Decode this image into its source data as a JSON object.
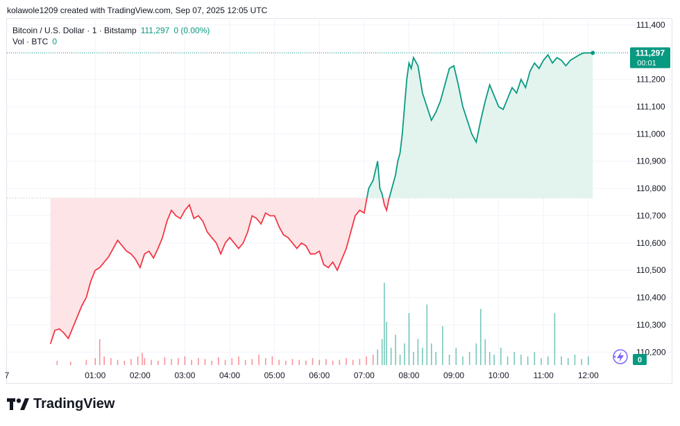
{
  "header": {
    "text": "kolawole1209 created with TradingView.com, Sep 07, 2025 12:05 UTC"
  },
  "legend": {
    "symbol": "Bitcoin / U.S. Dollar · 1 · Bitstamp",
    "last": "111,297",
    "change": "0 (0.00%)",
    "vol_label": "Vol · BTC",
    "vol_value": "0"
  },
  "price_badge": {
    "price": "111,297",
    "countdown": "00:01"
  },
  "volume_badge": "0",
  "brand": {
    "name": "TradingView"
  },
  "colors": {
    "up": "#089981",
    "down": "#f23645",
    "up_fill": "#e3f4ef",
    "down_fill": "#fde5e7",
    "grid": "#f0f3fa",
    "axis_text": "#131722"
  },
  "chart_data": {
    "type": "area",
    "title": "Bitcoin / U.S. Dollar · 1 · Bitstamp",
    "baseline": 110765,
    "ylim": [
      110150,
      111420
    ],
    "y_ticks": [
      110200,
      110300,
      110400,
      110500,
      110600,
      110700,
      110800,
      110900,
      111000,
      111100,
      111200,
      111300,
      111400
    ],
    "y_tick_labels": [
      "110,200",
      "110,300",
      "110,400",
      "110,500",
      "110,600",
      "110,700",
      "110,800",
      "110,900",
      "111,000",
      "111,100",
      "111,200",
      "111,300",
      "111,400"
    ],
    "x_range": [
      -0.97,
      12.73
    ],
    "x_ticks": [
      1,
      2,
      3,
      4,
      5,
      6,
      7,
      8,
      9,
      10,
      11,
      12
    ],
    "x_tick_labels": [
      "01:00",
      "02:00",
      "03:00",
      "04:00",
      "05:00",
      "06:00",
      "07:00",
      "08:00",
      "09:00",
      "10:00",
      "11:00",
      "12:00"
    ],
    "x_edge_label": "7",
    "last_price": 111297,
    "series": [
      {
        "x": [
          0.0,
          0.1,
          0.2,
          0.3,
          0.4,
          0.5,
          0.6,
          0.7,
          0.8,
          0.9,
          1.0,
          1.1,
          1.2,
          1.3,
          1.4,
          1.5,
          1.6,
          1.7,
          1.8,
          1.9,
          2.0,
          2.1,
          2.2,
          2.3,
          2.4,
          2.5,
          2.6,
          2.7,
          2.8,
          2.9,
          3.0,
          3.1,
          3.2,
          3.3,
          3.4,
          3.5,
          3.6,
          3.7,
          3.8,
          3.9,
          4.0,
          4.1,
          4.2,
          4.3,
          4.4,
          4.5,
          4.6,
          4.7,
          4.8,
          4.9,
          5.0,
          5.1,
          5.2,
          5.3,
          5.4,
          5.5,
          5.6,
          5.7,
          5.8,
          5.9,
          6.0,
          6.1,
          6.2,
          6.3,
          6.4,
          6.5,
          6.6,
          6.7,
          6.8,
          6.9,
          7.0,
          7.1,
          7.2,
          7.3,
          7.35,
          7.4,
          7.45,
          7.5,
          7.55,
          7.6,
          7.65,
          7.7,
          7.75,
          7.8,
          7.85,
          7.9,
          7.95,
          8.0,
          8.05,
          8.1,
          8.2,
          8.3,
          8.4,
          8.5,
          8.6,
          8.7,
          8.8,
          8.9,
          9.0,
          9.1,
          9.2,
          9.3,
          9.4,
          9.5,
          9.6,
          9.7,
          9.8,
          9.9,
          10.0,
          10.1,
          10.2,
          10.3,
          10.4,
          10.5,
          10.6,
          10.7,
          10.8,
          10.9,
          11.0,
          11.1,
          11.2,
          11.3,
          11.4,
          11.5,
          11.6,
          11.7,
          11.8,
          11.9,
          12.0,
          12.05,
          12.1
        ],
        "y": [
          110230,
          110280,
          110285,
          110270,
          110250,
          110290,
          110330,
          110370,
          110400,
          110460,
          110500,
          110510,
          110530,
          110550,
          110580,
          110610,
          110590,
          110570,
          110560,
          110540,
          110510,
          110560,
          110570,
          110545,
          110580,
          110620,
          110680,
          110720,
          110700,
          110690,
          110720,
          110740,
          110690,
          110700,
          110680,
          110640,
          110620,
          110600,
          110560,
          110600,
          110620,
          110600,
          110580,
          110600,
          110640,
          110700,
          110690,
          110670,
          110710,
          110700,
          110700,
          110660,
          110630,
          110620,
          110600,
          110580,
          110600,
          110590,
          110560,
          110560,
          110570,
          110520,
          110510,
          110530,
          110500,
          110540,
          110580,
          110640,
          110700,
          110720,
          110710,
          110800,
          110830,
          110900,
          110800,
          110780,
          110740,
          110720,
          110760,
          110790,
          110820,
          110850,
          110900,
          110930,
          111000,
          111100,
          111200,
          111260,
          111240,
          111280,
          111250,
          111150,
          111100,
          111050,
          111080,
          111120,
          111180,
          111240,
          111250,
          111180,
          111100,
          111050,
          111000,
          110970,
          111050,
          111120,
          111180,
          111140,
          111100,
          111090,
          111130,
          111170,
          111150,
          111200,
          111170,
          111230,
          111260,
          111240,
          111270,
          111290,
          111260,
          111280,
          111270,
          111250,
          111270,
          111280,
          111290,
          111297,
          111297,
          111297,
          111297
        ]
      }
    ],
    "volume": {
      "label": "Vol · BTC",
      "x": [
        0.15,
        0.45,
        0.8,
        1.0,
        1.1,
        1.2,
        1.35,
        1.5,
        1.65,
        1.8,
        1.95,
        2.05,
        2.1,
        2.25,
        2.4,
        2.55,
        2.7,
        2.85,
        3.0,
        3.15,
        3.3,
        3.45,
        3.6,
        3.75,
        3.9,
        4.05,
        4.2,
        4.35,
        4.5,
        4.65,
        4.8,
        4.95,
        5.1,
        5.25,
        5.4,
        5.55,
        5.7,
        5.85,
        6.0,
        6.15,
        6.3,
        6.45,
        6.6,
        6.75,
        6.9,
        7.05,
        7.2,
        7.3,
        7.4,
        7.45,
        7.5,
        7.6,
        7.7,
        7.8,
        7.9,
        8.0,
        8.1,
        8.2,
        8.3,
        8.4,
        8.5,
        8.6,
        8.75,
        8.9,
        9.05,
        9.2,
        9.35,
        9.5,
        9.6,
        9.7,
        9.8,
        9.9,
        10.05,
        10.2,
        10.35,
        10.5,
        10.65,
        10.8,
        10.95,
        11.1,
        11.25,
        11.4,
        11.55,
        11.7,
        11.85,
        12.0
      ],
      "values": [
        0.05,
        0.04,
        0.06,
        0.08,
        0.3,
        0.1,
        0.08,
        0.06,
        0.05,
        0.07,
        0.1,
        0.14,
        0.08,
        0.06,
        0.05,
        0.09,
        0.07,
        0.08,
        0.1,
        0.06,
        0.08,
        0.07,
        0.05,
        0.09,
        0.06,
        0.08,
        0.1,
        0.06,
        0.07,
        0.12,
        0.08,
        0.1,
        0.06,
        0.05,
        0.07,
        0.06,
        0.05,
        0.08,
        0.06,
        0.07,
        0.05,
        0.06,
        0.08,
        0.06,
        0.07,
        0.1,
        0.12,
        0.18,
        0.3,
        0.95,
        0.5,
        0.2,
        0.35,
        0.12,
        0.25,
        0.6,
        0.15,
        0.3,
        0.2,
        0.7,
        0.25,
        0.15,
        0.45,
        0.12,
        0.2,
        0.1,
        0.15,
        0.25,
        0.65,
        0.3,
        0.15,
        0.12,
        0.2,
        0.1,
        0.15,
        0.12,
        0.1,
        0.15,
        0.08,
        0.1,
        0.6,
        0.1,
        0.08,
        0.12,
        0.07,
        0.1
      ]
    }
  }
}
